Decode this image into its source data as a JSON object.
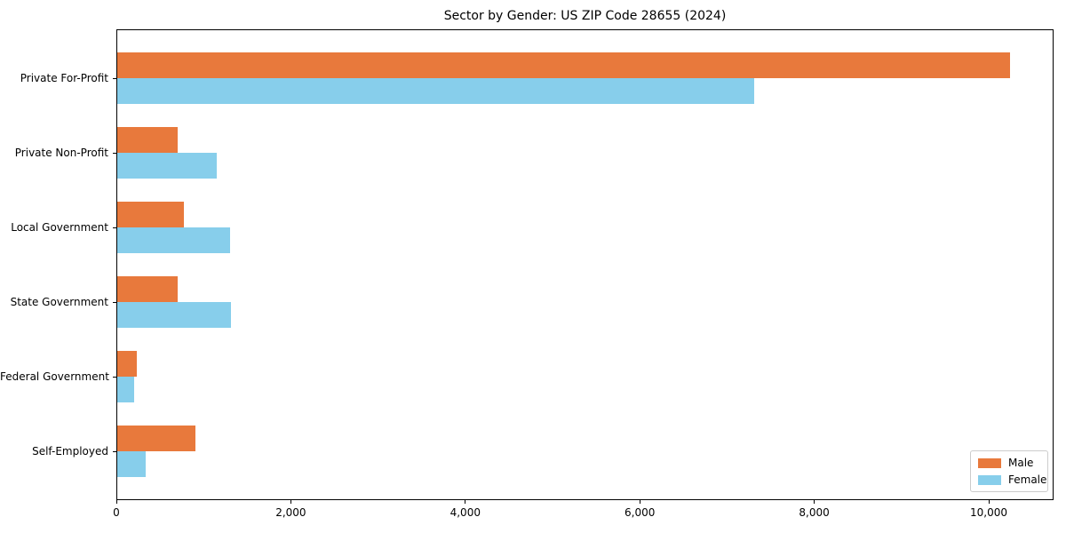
{
  "chart_data": {
    "type": "bar",
    "orientation": "horizontal",
    "title": "Sector by Gender: US ZIP Code 28655 (2024)",
    "categories": [
      "Private For-Profit",
      "Private Non-Profit",
      "Local Government",
      "State Government",
      "Federal Government",
      "Self-Employed"
    ],
    "series": [
      {
        "name": "Male",
        "color": "#E8793C",
        "values": [
          10230,
          690,
          765,
          690,
          225,
          895
        ]
      },
      {
        "name": "Female",
        "color": "#87CEEB",
        "values": [
          7300,
          1140,
          1295,
          1305,
          195,
          325
        ]
      }
    ],
    "xlabel": "",
    "ylabel": "",
    "xlim": [
      0,
      10740
    ],
    "xticks": [
      0,
      2000,
      4000,
      6000,
      8000,
      10000
    ],
    "xtick_labels": [
      "0",
      "2,000",
      "4,000",
      "6,000",
      "8,000",
      "10,000"
    ],
    "legend": {
      "position": "lower right",
      "entries": [
        "Male",
        "Female"
      ]
    },
    "grid": false,
    "background": "#ffffff",
    "spine_color": "#000000"
  }
}
